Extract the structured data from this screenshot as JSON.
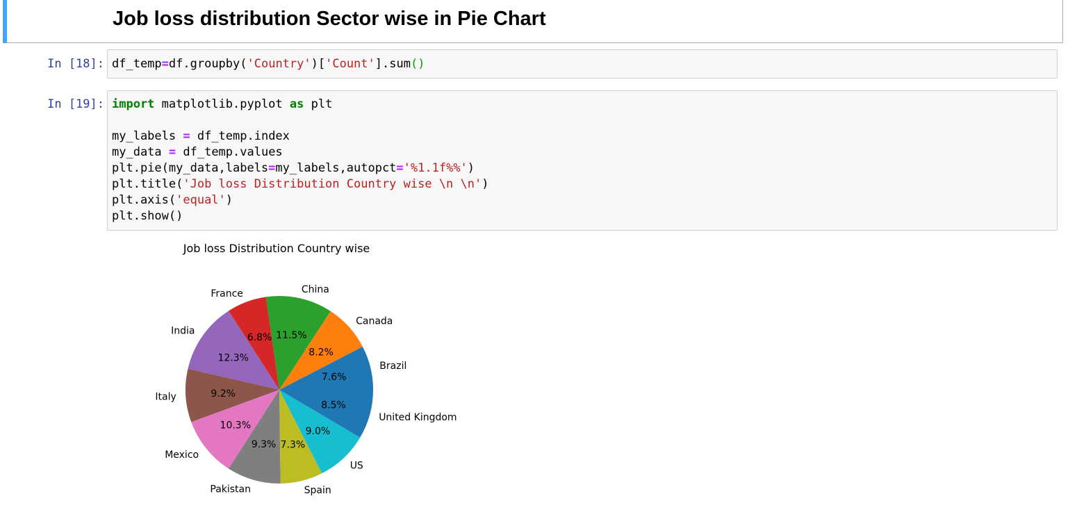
{
  "markdown_cell": {
    "heading": "Job loss distribution Sector wise in Pie Chart"
  },
  "cells": [
    {
      "prompt": "In [18]:",
      "tokens": [
        {
          "t": "df_temp",
          "c": ""
        },
        {
          "t": "=",
          "c": "op"
        },
        {
          "t": "df.groupby(",
          "c": ""
        },
        {
          "t": "'Country'",
          "c": "str"
        },
        {
          "t": ")[",
          "c": ""
        },
        {
          "t": "'Count'",
          "c": "str"
        },
        {
          "t": "].sum",
          "c": ""
        },
        {
          "t": "()",
          "c": "paren"
        }
      ]
    },
    {
      "prompt": "In [19]:",
      "lines": [
        [
          {
            "t": "import",
            "c": "kw"
          },
          {
            "t": " matplotlib.pyplot ",
            "c": ""
          },
          {
            "t": "as",
            "c": "kw"
          },
          {
            "t": " plt",
            "c": ""
          }
        ],
        [],
        [
          {
            "t": "my_labels ",
            "c": ""
          },
          {
            "t": "=",
            "c": "op"
          },
          {
            "t": " df_temp.index",
            "c": ""
          }
        ],
        [
          {
            "t": "my_data ",
            "c": ""
          },
          {
            "t": "=",
            "c": "op"
          },
          {
            "t": " df_temp.values",
            "c": ""
          }
        ],
        [
          {
            "t": "plt.pie(my_data,labels",
            "c": ""
          },
          {
            "t": "=",
            "c": "op"
          },
          {
            "t": "my_labels,autopct",
            "c": ""
          },
          {
            "t": "=",
            "c": "op"
          },
          {
            "t": "'%1.1f%%'",
            "c": "str"
          },
          {
            "t": ")",
            "c": ""
          }
        ],
        [
          {
            "t": "plt.title(",
            "c": ""
          },
          {
            "t": "'Job loss Distribution Country wise \\n \\n'",
            "c": "str"
          },
          {
            "t": ")",
            "c": ""
          }
        ],
        [
          {
            "t": "plt.axis(",
            "c": ""
          },
          {
            "t": "'equal'",
            "c": "str"
          },
          {
            "t": ")",
            "c": ""
          }
        ],
        [
          {
            "t": "plt.show()",
            "c": ""
          }
        ]
      ]
    }
  ],
  "chart_data": {
    "type": "pie",
    "title": "Job loss Distribution Country wise",
    "start_angle_deg": 0,
    "direction": "counterclockwise",
    "slices": [
      {
        "label": "Brazil",
        "pct": 7.6,
        "pct_label": "7.6%",
        "color": "#1f77b4"
      },
      {
        "label": "Canada",
        "pct": 8.2,
        "pct_label": "8.2%",
        "color": "#ff7f0e"
      },
      {
        "label": "China",
        "pct": 11.5,
        "pct_label": "11.5%",
        "color": "#2ca02c"
      },
      {
        "label": "France",
        "pct": 6.8,
        "pct_label": "6.8%",
        "color": "#d62728"
      },
      {
        "label": "India",
        "pct": 12.3,
        "pct_label": "12.3%",
        "color": "#9467bd"
      },
      {
        "label": "Italy",
        "pct": 9.2,
        "pct_label": "9.2%",
        "color": "#8c564b"
      },
      {
        "label": "Mexico",
        "pct": 10.3,
        "pct_label": "10.3%",
        "color": "#e377c2"
      },
      {
        "label": "Pakistan",
        "pct": 9.3,
        "pct_label": "9.3%",
        "color": "#7f7f7f"
      },
      {
        "label": "Spain",
        "pct": 7.3,
        "pct_label": "7.3%",
        "color": "#bcbd22"
      },
      {
        "label": "US",
        "pct": 9.0,
        "pct_label": "9.0%",
        "color": "#17becf"
      },
      {
        "label": "United Kingdom",
        "pct": 8.5,
        "pct_label": "8.5%",
        "color": "#1f77b4"
      }
    ]
  }
}
